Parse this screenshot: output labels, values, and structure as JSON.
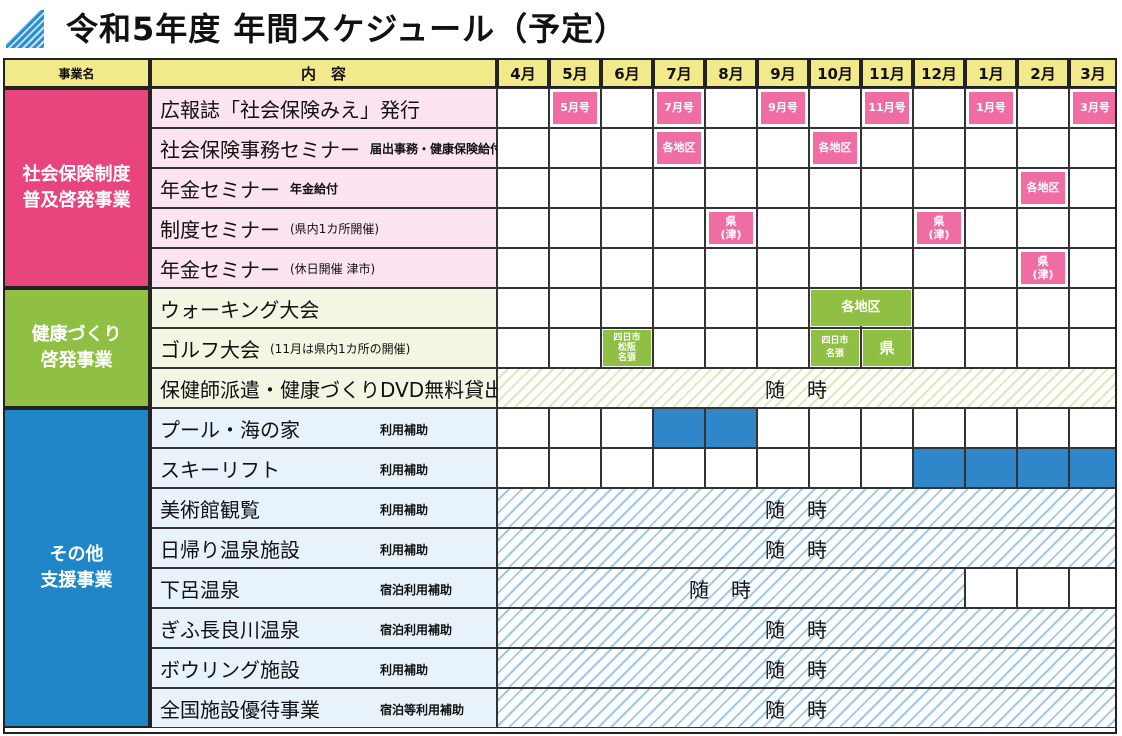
{
  "title": "令和5年度 年間スケジュール（予定）",
  "header": {
    "category": "事業名",
    "content": "内　容",
    "months": [
      "4月",
      "5月",
      "6月",
      "7月",
      "8月",
      "9月",
      "10月",
      "11月",
      "12月",
      "1月",
      "2月",
      "3月"
    ]
  },
  "categories": [
    {
      "label": "社会保険制度\n普及啓発事業",
      "color": "#e8457e",
      "label_bg": "#fbe3ef"
    },
    {
      "label": "健康づくり\n啓発事業",
      "color": "#8fc044",
      "label_bg": "#f1f7e2"
    },
    {
      "label": "その他\n支援事業",
      "color": "#1f86c8",
      "label_bg": "#e8f2fb"
    }
  ],
  "rows": [
    {
      "main": "広報誌「社会保険みえ」発行",
      "note": "",
      "marks": [
        {
          "m": 1,
          "text": "5月号"
        },
        {
          "m": 3,
          "text": "7月号"
        },
        {
          "m": 5,
          "text": "9月号"
        },
        {
          "m": 7,
          "text": "11月号"
        },
        {
          "m": 9,
          "text": "1月号"
        },
        {
          "m": 11,
          "text": "3月号"
        }
      ]
    },
    {
      "main": "社会保険事務セミナー",
      "note": "届出事務・健康保険給付",
      "marks": [
        {
          "m": 3,
          "text": "各地区"
        },
        {
          "m": 6,
          "text": "各地区"
        }
      ]
    },
    {
      "main": "年金セミナー",
      "note": "年金給付",
      "marks": [
        {
          "m": 10,
          "text": "各地区"
        }
      ]
    },
    {
      "main": "制度セミナー",
      "note": "(県内1カ所開催)",
      "marks": [
        {
          "m": 4,
          "text": "県\n(津)"
        },
        {
          "m": 8,
          "text": "県\n(津)"
        }
      ]
    },
    {
      "main": "年金セミナー",
      "note": "(休日開催 津市)",
      "marks": [
        {
          "m": 10,
          "text": "県\n(津)"
        }
      ]
    },
    {
      "main": "ウォーキング大会",
      "note": "",
      "marks": [
        {
          "m": 6,
          "w": 2,
          "text": "各地区"
        }
      ]
    },
    {
      "main": "ゴルフ大会",
      "note": "(11月は県内1カ所の開催)",
      "marks": [
        {
          "m": 2,
          "text": "四日市\n松阪\n名張"
        },
        {
          "m": 6,
          "text": "四日市\n名張"
        },
        {
          "m": 7,
          "text": "県"
        }
      ]
    },
    {
      "main": "保健師派遣・健康づくりDVD無料貸出",
      "note": "",
      "span": "随時"
    },
    {
      "main": "プール・海の家",
      "note": "利用補助",
      "fills": [
        3,
        4
      ]
    },
    {
      "main": "スキーリフト",
      "note": "利用補助",
      "fills": [
        8,
        9,
        10,
        11
      ]
    },
    {
      "main": "美術館観覧",
      "note": "利用補助",
      "span": "随時"
    },
    {
      "main": "日帰り温泉施設",
      "note": "利用補助",
      "span": "随時"
    },
    {
      "main": "下呂温泉",
      "note": "宿泊利用補助",
      "span": "随時",
      "span_months": 9
    },
    {
      "main": "ぎふ長良川温泉",
      "note": "宿泊利用補助",
      "span": "随時"
    },
    {
      "main": "ボウリング施設",
      "note": "利用補助",
      "span": "随時"
    },
    {
      "main": "全国施設優待事業",
      "note": "宿泊等利用補助",
      "span": "随時"
    }
  ],
  "colors": {
    "pink_mark": "#f06da3",
    "green_mark": "#8fc044",
    "blue_fill": "#2f86c9",
    "header_bg": "#f2e98a"
  }
}
